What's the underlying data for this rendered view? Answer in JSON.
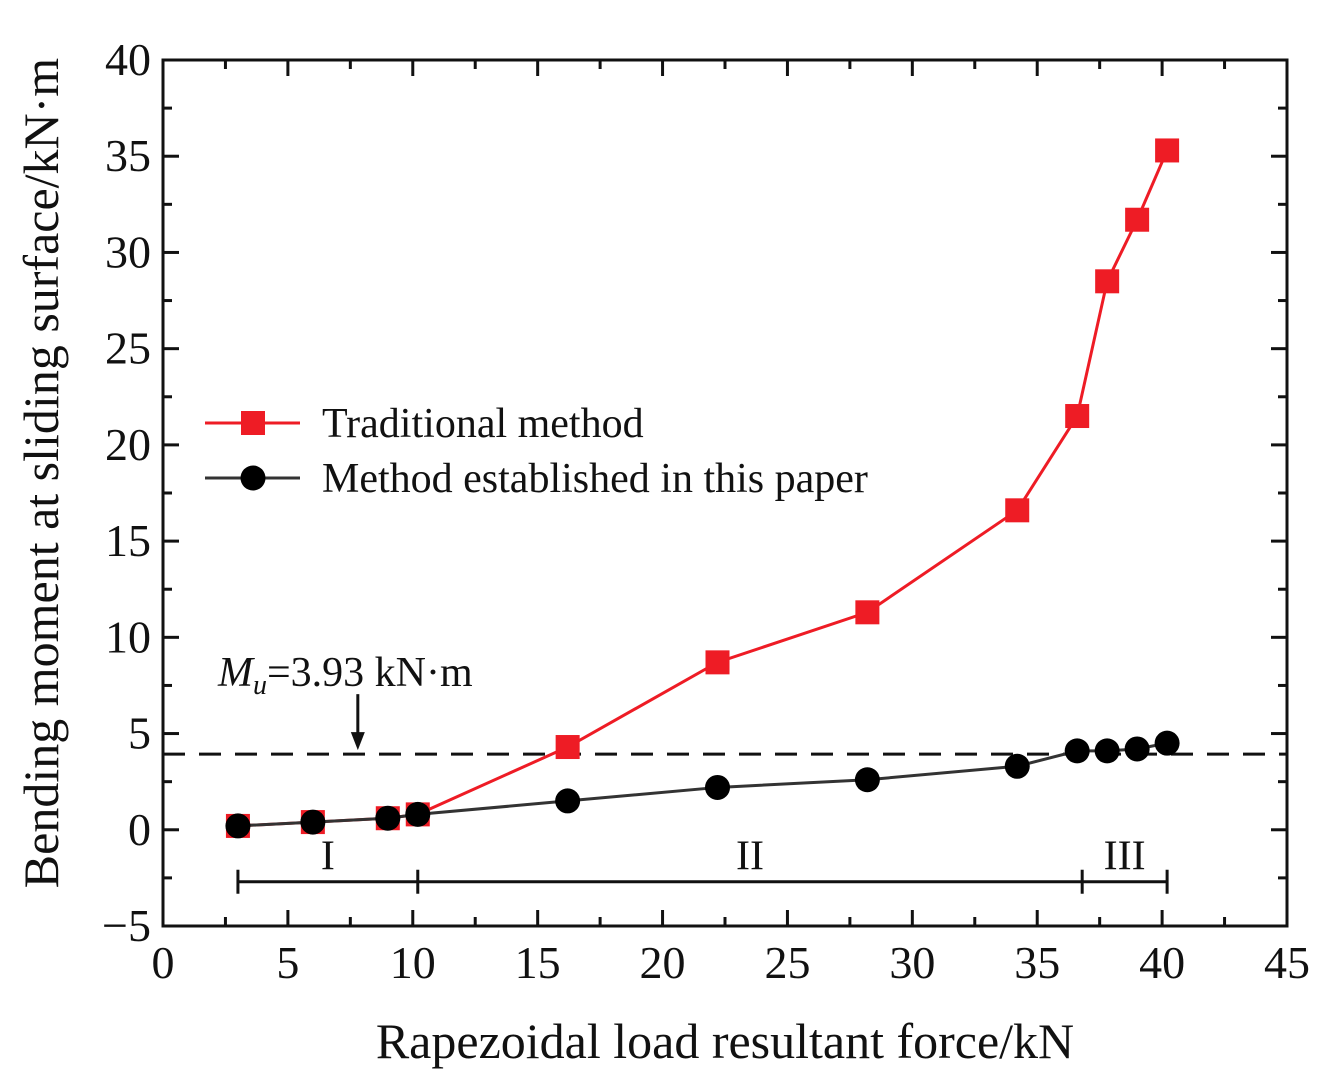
{
  "chart_data": {
    "type": "line",
    "title": "",
    "xlabel": "Rapezoidal load resultant force/kN",
    "ylabel": "Bending moment at sliding surface/kN·m",
    "xlim": [
      0,
      45
    ],
    "ylim": [
      -5,
      40
    ],
    "xticks": [
      0,
      5,
      10,
      15,
      20,
      25,
      30,
      35,
      40,
      45
    ],
    "yticks": [
      -5,
      0,
      5,
      10,
      15,
      20,
      25,
      30,
      35,
      40
    ],
    "xtick_labels": [
      "0",
      "5",
      "10",
      "15",
      "20",
      "25",
      "30",
      "35",
      "40",
      "45"
    ],
    "ytick_labels": [
      "−5",
      "0",
      "5",
      "10",
      "15",
      "20",
      "25",
      "30",
      "35",
      "40"
    ],
    "legend_position": "center-left",
    "series": [
      {
        "name": "Traditional method",
        "color": "#ee1c25",
        "marker": "square",
        "x": [
          3.0,
          6.0,
          9.0,
          10.2,
          16.2,
          22.2,
          28.2,
          34.2,
          36.6,
          37.8,
          39.0,
          40.2
        ],
        "y": [
          0.2,
          0.4,
          0.6,
          0.8,
          4.3,
          8.7,
          11.3,
          16.6,
          21.5,
          28.5,
          31.7,
          35.3
        ]
      },
      {
        "name": "Method established in this paper",
        "color": "#000000",
        "marker": "circle",
        "x": [
          3.0,
          6.0,
          9.0,
          10.2,
          16.2,
          22.2,
          28.2,
          34.2,
          36.6,
          37.8,
          39.0,
          40.2
        ],
        "y": [
          0.2,
          0.4,
          0.6,
          0.8,
          1.5,
          2.2,
          2.6,
          3.3,
          4.1,
          4.1,
          4.2,
          4.5
        ]
      }
    ],
    "reference_line": {
      "y": 3.93,
      "style": "dashed",
      "label_prefix": "M",
      "label_sub": "u",
      "label_rest": "=3.93 kN·m",
      "arrow_x": 7.8
    },
    "regions": [
      {
        "label": "I",
        "from": 3.0,
        "to": 10.2
      },
      {
        "label": "II",
        "from": 10.2,
        "to": 36.8
      },
      {
        "label": "III",
        "from": 36.8,
        "to": 40.2
      }
    ],
    "regions_y": -2.7
  }
}
